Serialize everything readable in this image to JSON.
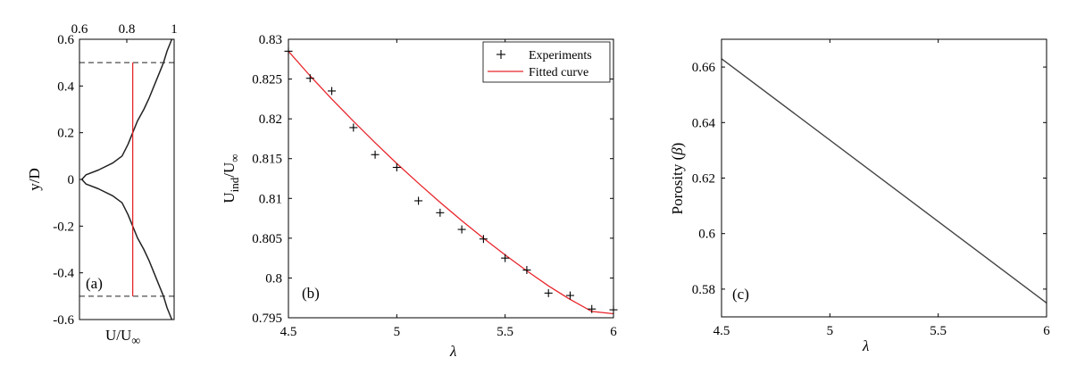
{
  "chart_data": [
    {
      "panel": "(a)",
      "type": "line",
      "xlabel": "U/U∞",
      "ylabel": "y/D",
      "xlim": [
        0.6,
        1
      ],
      "ylim": [
        -0.6,
        0.6
      ],
      "x_ticks_top": [
        "0.6",
        "0.8",
        "1"
      ],
      "y_ticks": [
        "0.6",
        "0.4",
        "0.2",
        "0",
        "-0.2",
        "-0.4",
        "-0.6"
      ],
      "profile": {
        "color": "#222222",
        "points": [
          [
            0.99,
            0.6
          ],
          [
            0.97,
            0.55
          ],
          [
            0.955,
            0.5
          ],
          [
            0.935,
            0.45
          ],
          [
            0.915,
            0.4
          ],
          [
            0.895,
            0.35
          ],
          [
            0.872,
            0.3
          ],
          [
            0.845,
            0.25
          ],
          [
            0.825,
            0.2
          ],
          [
            0.805,
            0.15
          ],
          [
            0.78,
            0.1
          ],
          [
            0.74,
            0.07
          ],
          [
            0.68,
            0.04
          ],
          [
            0.628,
            0.02
          ],
          [
            0.61,
            0
          ],
          [
            0.628,
            -0.02
          ],
          [
            0.68,
            -0.04
          ],
          [
            0.74,
            -0.07
          ],
          [
            0.78,
            -0.1
          ],
          [
            0.805,
            -0.15
          ],
          [
            0.825,
            -0.2
          ],
          [
            0.845,
            -0.25
          ],
          [
            0.872,
            -0.3
          ],
          [
            0.895,
            -0.35
          ],
          [
            0.915,
            -0.4
          ],
          [
            0.935,
            -0.45
          ],
          [
            0.955,
            -0.5
          ],
          [
            0.97,
            -0.55
          ],
          [
            0.99,
            -0.6
          ]
        ]
      },
      "disk_line": {
        "color": "#e8252b",
        "x": 0.825,
        "y_range": [
          -0.5,
          0.5
        ]
      },
      "dashed_lines": {
        "color": "#222222",
        "y": [
          0.5,
          -0.5
        ]
      }
    },
    {
      "panel": "(b)",
      "type": "scatter",
      "xlabel": "λ",
      "ylabel": "U_ind/U∞",
      "xlim": [
        4.5,
        6
      ],
      "ylim": [
        0.795,
        0.83
      ],
      "x_ticks": [
        "4.5",
        "5",
        "5.5",
        "6"
      ],
      "y_ticks": [
        "0.83",
        "0.825",
        "0.82",
        "0.815",
        "0.81",
        "0.805",
        "0.8",
        "0.795"
      ],
      "legend": [
        "Experiments",
        "Fitted curve"
      ],
      "legend_position": "top-right",
      "series": [
        {
          "name": "Experiments",
          "marker": "+",
          "color": "#000000",
          "x": [
            4.5,
            4.6,
            4.7,
            4.8,
            4.9,
            5.0,
            5.1,
            5.2,
            5.3,
            5.4,
            5.5,
            5.6,
            5.7,
            5.8,
            5.9,
            6.0
          ],
          "y": [
            0.8285,
            0.8251,
            0.8235,
            0.8189,
            0.8155,
            0.8139,
            0.8097,
            0.8082,
            0.8061,
            0.8049,
            0.8025,
            0.801,
            0.7981,
            0.7978,
            0.7961,
            0.796
          ]
        },
        {
          "name": "Fitted curve",
          "color": "#e8252b",
          "x": [
            4.5,
            4.6,
            4.7,
            4.8,
            4.9,
            5.0,
            5.1,
            5.2,
            5.3,
            5.4,
            5.5,
            5.6,
            5.7,
            5.8,
            5.9,
            6.0
          ],
          "y": [
            0.8285,
            0.8254,
            0.8225,
            0.8197,
            0.817,
            0.8144,
            0.8119,
            0.8095,
            0.8072,
            0.805,
            0.8029,
            0.8009,
            0.799,
            0.7973,
            0.7958,
            0.7955
          ]
        }
      ]
    },
    {
      "panel": "(c)",
      "type": "line",
      "xlabel": "λ",
      "ylabel": "Porosity (β)",
      "xlim": [
        4.5,
        6
      ],
      "ylim": [
        0.57,
        0.67
      ],
      "x_ticks": [
        "4.5",
        "5",
        "5.5",
        "6"
      ],
      "y_ticks": [
        "0.66",
        "0.64",
        "0.62",
        "0.6",
        "0.58"
      ],
      "series": [
        {
          "color": "#444444",
          "x": [
            4.5,
            6.0
          ],
          "y": [
            0.663,
            0.575
          ]
        }
      ]
    }
  ]
}
